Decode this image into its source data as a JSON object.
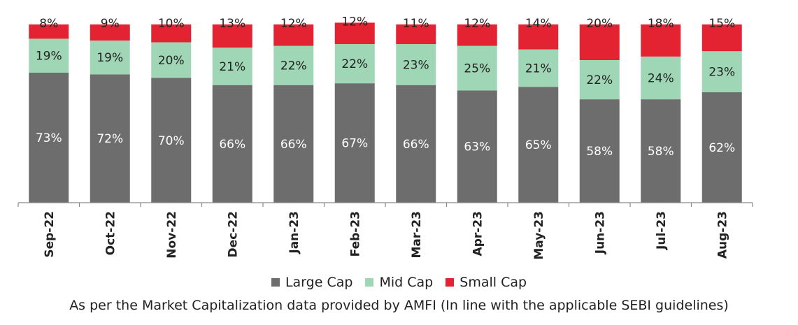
{
  "chart_data": {
    "type": "bar",
    "stacked": true,
    "percent_stacked": true,
    "categories": [
      "Sep-22",
      "Oct-22",
      "Nov-22",
      "Dec-22",
      "Jan-23",
      "Feb-23",
      "Mar-23",
      "Apr-23",
      "May-23",
      "Jun-23",
      "Jul-23",
      "Aug-23"
    ],
    "series": [
      {
        "name": "Large Cap",
        "color": "#6d6d6d",
        "values": [
          73,
          72,
          70,
          66,
          66,
          67,
          66,
          63,
          65,
          58,
          58,
          62
        ]
      },
      {
        "name": "Mid Cap",
        "color": "#9fd6b5",
        "values": [
          19,
          19,
          20,
          21,
          22,
          22,
          23,
          25,
          21,
          22,
          24,
          23
        ]
      },
      {
        "name": "Small Cap",
        "color": "#e32232",
        "values": [
          8,
          9,
          10,
          13,
          12,
          12,
          11,
          12,
          14,
          20,
          18,
          15
        ]
      }
    ],
    "value_suffix": "%",
    "ylim": [
      0,
      100
    ],
    "grid": false,
    "legend_position": "bottom"
  },
  "legend": [
    {
      "label": "Large Cap",
      "color": "#6d6d6d"
    },
    {
      "label": "Mid Cap",
      "color": "#9fd6b5"
    },
    {
      "label": "Small Cap",
      "color": "#e32232"
    }
  ],
  "footnote": "As per the Market Capitalization data provided by AMFI (In line with the applicable SEBI guidelines)"
}
